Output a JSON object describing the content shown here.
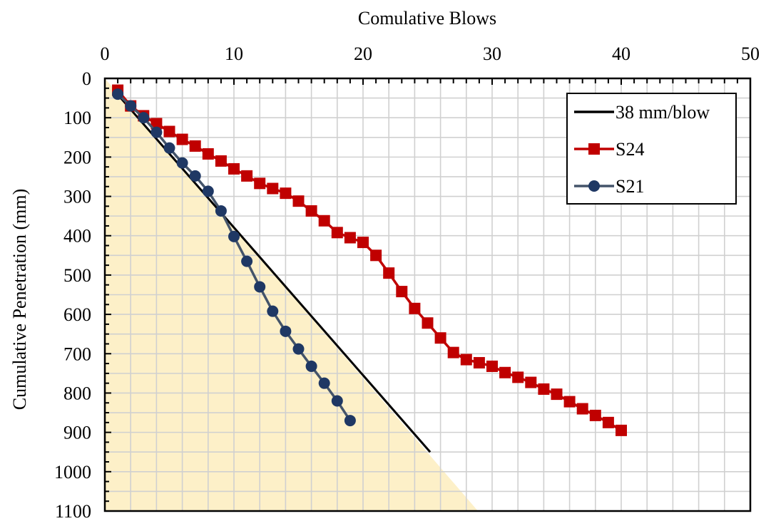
{
  "chart_data": {
    "type": "line",
    "xlabel": "Comulative Blows",
    "ylabel": "Cumulative Penetration (mm)",
    "xlim": [
      0,
      50
    ],
    "ylim": [
      0,
      1100
    ],
    "y_inverted": true,
    "x_axis_position": "top",
    "x_major_ticks": [
      0,
      10,
      20,
      30,
      40,
      50
    ],
    "y_major_ticks": [
      0,
      100,
      200,
      300,
      400,
      500,
      600,
      700,
      800,
      900,
      1000,
      1100
    ],
    "x_minor_step": 2,
    "y_minor_step": 50,
    "grid": true,
    "legend_position": "top-right",
    "shaded_region": {
      "color": "#fdf0c8",
      "vertices": [
        [
          0,
          0
        ],
        [
          28.9,
          1100
        ],
        [
          0,
          1100
        ]
      ]
    },
    "series": [
      {
        "name": "38 mm/blow",
        "kind": "line",
        "color": "#000000",
        "marker": "none",
        "x": [
          0.7,
          25.2
        ],
        "y": [
          30,
          950
        ]
      },
      {
        "name": "S24",
        "kind": "line",
        "color": "#c00000",
        "marker": "square",
        "x": [
          1,
          2,
          3,
          4,
          5,
          6,
          7,
          8,
          9,
          10,
          11,
          12,
          13,
          14,
          15,
          16,
          17,
          18,
          19,
          20,
          21,
          22,
          23,
          24,
          25,
          26,
          27,
          28,
          29,
          30,
          31,
          32,
          33,
          34,
          35,
          36,
          37,
          38,
          39,
          40
        ],
        "y": [
          30,
          70,
          95,
          115,
          135,
          155,
          172,
          192,
          210,
          230,
          248,
          267,
          280,
          292,
          312,
          337,
          362,
          392,
          405,
          417,
          450,
          495,
          542,
          585,
          622,
          660,
          697,
          715,
          723,
          732,
          748,
          760,
          773,
          790,
          803,
          822,
          840,
          857,
          875,
          895
        ]
      },
      {
        "name": "S21",
        "kind": "line",
        "color": "#1f3864",
        "line_color": "#44546a",
        "marker": "circle",
        "x": [
          1,
          2,
          3,
          4,
          5,
          6,
          7,
          8,
          9,
          10,
          11,
          12,
          13,
          14,
          15,
          16,
          17,
          18,
          19
        ],
        "y": [
          40,
          70,
          100,
          137,
          177,
          215,
          248,
          287,
          337,
          402,
          465,
          530,
          592,
          643,
          688,
          732,
          775,
          820,
          870
        ]
      }
    ]
  }
}
